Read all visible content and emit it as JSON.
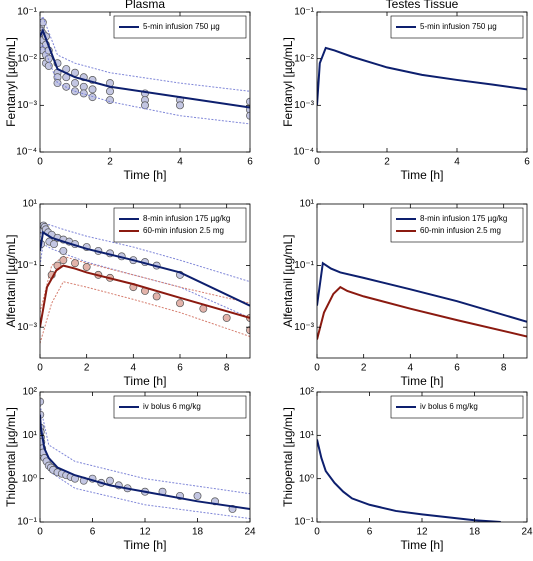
{
  "chart_data": [
    {
      "type": "line",
      "title": "Plasma",
      "xlabel": "Time [h]",
      "ylabel": "Fentanyl [µg/mL]",
      "yscale": "log",
      "legend": "upper right",
      "xlim": [
        0,
        6
      ],
      "xticks": [
        0,
        2,
        4,
        6
      ],
      "ylim": [
        0.0001,
        0.1
      ],
      "yticks": [
        {
          "value": 0.0001,
          "label": "10⁻⁴"
        },
        {
          "value": 0.001,
          "label": "10⁻³"
        },
        {
          "value": 0.01,
          "label": "10⁻²"
        },
        {
          "value": 0.1,
          "label": "10⁻¹"
        }
      ],
      "series": [
        {
          "kind": "scatter",
          "color": "#555555",
          "fill": "#c3c6e2",
          "x": [
            0.03,
            0.03,
            0.03,
            0.03,
            0.08,
            0.08,
            0.08,
            0.08,
            0.17,
            0.17,
            0.17,
            0.17,
            0.25,
            0.25,
            0.25,
            0.5,
            0.5,
            0.5,
            0.5,
            0.75,
            0.75,
            0.75,
            1,
            1,
            1,
            1.25,
            1.25,
            1.25,
            1.5,
            1.5,
            1.5,
            2,
            2,
            2,
            3,
            3,
            3,
            4,
            4,
            6,
            6,
            6
          ],
          "values": [
            0.05,
            0.04,
            0.03,
            0.02,
            0.06,
            0.035,
            0.025,
            0.015,
            0.03,
            0.02,
            0.012,
            0.008,
            0.015,
            0.01,
            0.007,
            0.008,
            0.005,
            0.004,
            0.003,
            0.006,
            0.004,
            0.0025,
            0.005,
            0.003,
            0.002,
            0.004,
            0.0025,
            0.0018,
            0.0035,
            0.0022,
            0.0015,
            0.003,
            0.002,
            0.0013,
            0.0018,
            0.0013,
            0.001,
            0.0013,
            0.001,
            0.0012,
            0.0008,
            0.0006
          ]
        },
        {
          "kind": "dotted",
          "color": "#7f86d8",
          "x": [
            0,
            0.08,
            0.5,
            1,
            2,
            4,
            6
          ],
          "values": [
            0.06,
            0.08,
            0.012,
            0.008,
            0.005,
            0.003,
            0.002
          ]
        },
        {
          "kind": "dotted",
          "color": "#7f86d8",
          "x": [
            0,
            0.08,
            0.5,
            1,
            2,
            4,
            6
          ],
          "values": [
            0.015,
            0.02,
            0.003,
            0.002,
            0.0012,
            0.0006,
            0.0004
          ]
        },
        {
          "kind": "line",
          "name": "5-min infusion 750 µg",
          "color": "#0d1f6e",
          "x": [
            0,
            0.08,
            0.5,
            1,
            2,
            4,
            6
          ],
          "values": [
            0.03,
            0.04,
            0.006,
            0.004,
            0.0025,
            0.0015,
            0.0009
          ]
        }
      ]
    },
    {
      "type": "line",
      "title": "Testes Tissue",
      "xlabel": "Time [h]",
      "ylabel": "Fentanyl [µg/mL]",
      "yscale": "log",
      "legend": "upper right",
      "xlim": [
        0,
        6
      ],
      "xticks": [
        0,
        2,
        4,
        6
      ],
      "ylim": [
        0.0001,
        0.1
      ],
      "yticks": [
        {
          "value": 0.0001,
          "label": "10⁻⁴"
        },
        {
          "value": 0.001,
          "label": "10⁻³"
        },
        {
          "value": 0.01,
          "label": "10⁻²"
        },
        {
          "value": 0.1,
          "label": "10⁻¹"
        }
      ],
      "series": [
        {
          "kind": "line",
          "name": "5-min infusion 750 µg",
          "color": "#0d1f6e",
          "x": [
            0,
            0.08,
            0.25,
            0.5,
            1,
            2,
            3,
            4,
            5,
            6
          ],
          "values": [
            0.001,
            0.008,
            0.017,
            0.015,
            0.011,
            0.0065,
            0.0045,
            0.0035,
            0.0028,
            0.0022
          ]
        }
      ]
    },
    {
      "type": "line",
      "xlabel": "Time [h]",
      "ylabel": "Alfentanil [µg/mL]",
      "yscale": "log",
      "legend": "upper right",
      "xlim": [
        0,
        9
      ],
      "xticks": [
        0,
        2,
        4,
        6,
        8
      ],
      "ylim": [
        0.0001,
        10
      ],
      "yticks": [
        {
          "value": 0.001,
          "label": "10⁻³"
        },
        {
          "value": 0.1,
          "label": "10⁻¹"
        },
        {
          "value": 10,
          "label": "10¹"
        }
      ],
      "series": [
        {
          "kind": "dotted",
          "color": "#7f86d8",
          "x": [
            0,
            0.13,
            0.5,
            1,
            2,
            4,
            6,
            9
          ],
          "values": [
            0.8,
            2.5,
            2,
            1.5,
            0.9,
            0.4,
            0.15,
            0.03
          ]
        },
        {
          "kind": "dotted",
          "color": "#7f86d8",
          "x": [
            0,
            0.13,
            0.5,
            1,
            2,
            4,
            6,
            9
          ],
          "values": [
            0.1,
            0.5,
            0.35,
            0.25,
            0.13,
            0.05,
            0.02,
            0.002
          ]
        },
        {
          "kind": "dotted",
          "color": "#d67f70",
          "x": [
            0,
            0.5,
            1,
            2,
            4,
            6,
            9
          ],
          "values": [
            0.003,
            0.1,
            0.2,
            0.12,
            0.05,
            0.02,
            0.006
          ]
        },
        {
          "kind": "dotted",
          "color": "#d67f70",
          "x": [
            0,
            0.5,
            1,
            2,
            4,
            6,
            9
          ],
          "values": [
            0.0003,
            0.006,
            0.03,
            0.02,
            0.008,
            0.003,
            0.0005
          ]
        },
        {
          "kind": "scatter",
          "color": "#555555",
          "fill": "#c3c6e2",
          "x": [
            0.05,
            0.1,
            0.15,
            0.2,
            0.25,
            0.35,
            0.5,
            0.75,
            1,
            1.25,
            1.5,
            2,
            2.5,
            3,
            3.5,
            4,
            4.5,
            5,
            6,
            0.4,
            0.6,
            1
          ],
          "values": [
            0.5,
            1.5,
            2,
            1.8,
            1.5,
            1.2,
            1,
            0.8,
            0.7,
            0.6,
            0.5,
            0.4,
            0.3,
            0.25,
            0.2,
            0.15,
            0.13,
            0.1,
            0.05,
            0.6,
            0.5,
            0.3
          ]
        },
        {
          "kind": "scatter",
          "color": "#555555",
          "fill": "#e2b3aa",
          "x": [
            0.5,
            0.75,
            1,
            1.5,
            2,
            2.5,
            3,
            4,
            4.5,
            5,
            6,
            7,
            8,
            9,
            9
          ],
          "values": [
            0.05,
            0.1,
            0.15,
            0.12,
            0.09,
            0.05,
            0.04,
            0.02,
            0.015,
            0.01,
            0.006,
            0.004,
            0.002,
            0.002,
            0.0008
          ]
        },
        {
          "kind": "line",
          "name": "8-min infusion 175 µg/kg",
          "color": "#0d1f6e",
          "x": [
            0,
            0.13,
            0.5,
            1,
            2,
            4,
            6,
            9
          ],
          "values": [
            0.3,
            1.2,
            0.8,
            0.6,
            0.35,
            0.15,
            0.06,
            0.005
          ]
        },
        {
          "kind": "line",
          "name": "60-min infusion 2.5 mg",
          "color": "#8b1a10",
          "x": [
            0,
            0.3,
            0.7,
            1,
            1.5,
            2,
            4,
            6,
            9
          ],
          "values": [
            0.001,
            0.02,
            0.07,
            0.1,
            0.08,
            0.06,
            0.025,
            0.009,
            0.002
          ]
        }
      ]
    },
    {
      "type": "line",
      "xlabel": "Time [h]",
      "ylabel": "Alfentanil [µg/mL]",
      "yscale": "log",
      "legend": "upper right",
      "xlim": [
        0,
        9
      ],
      "xticks": [
        0,
        2,
        4,
        6,
        8
      ],
      "ylim": [
        0.0001,
        10
      ],
      "yticks": [
        {
          "value": 0.001,
          "label": "10⁻³"
        },
        {
          "value": 0.1,
          "label": "10⁻¹"
        },
        {
          "value": 10,
          "label": "10¹"
        }
      ],
      "series": [
        {
          "kind": "line",
          "name": "8-min infusion 175 µg/kg",
          "color": "#0d1f6e",
          "x": [
            0,
            0.25,
            0.6,
            1,
            2,
            4,
            6,
            9
          ],
          "values": [
            0.005,
            0.12,
            0.08,
            0.06,
            0.04,
            0.017,
            0.007,
            0.0015
          ]
        },
        {
          "kind": "line",
          "name": "60-min infusion 2.5 mg",
          "color": "#8b1a10",
          "x": [
            0,
            0.3,
            0.7,
            1,
            1.3,
            2,
            4,
            6,
            9
          ],
          "values": [
            0.0004,
            0.003,
            0.012,
            0.02,
            0.015,
            0.01,
            0.004,
            0.0017,
            0.0005
          ]
        }
      ]
    },
    {
      "type": "line",
      "xlabel": "Time [h]",
      "ylabel": "Thiopental [µg/mL]",
      "yscale": "log",
      "legend": "upper right",
      "xlim": [
        0,
        24
      ],
      "xticks": [
        0,
        6,
        12,
        18,
        24
      ],
      "ylim": [
        0.1,
        100
      ],
      "yticks": [
        {
          "value": 0.1,
          "label": "10⁻¹"
        },
        {
          "value": 1,
          "label": "10⁰"
        },
        {
          "value": 10,
          "label": "10¹"
        },
        {
          "value": 100,
          "label": "10²"
        }
      ],
      "series": [
        {
          "kind": "dotted",
          "color": "#7f86d8",
          "x": [
            0,
            1,
            4,
            12,
            24
          ],
          "values": [
            50,
            6,
            2.5,
            1,
            0.45
          ]
        },
        {
          "kind": "dotted",
          "color": "#7f86d8",
          "x": [
            0,
            1,
            4,
            12,
            24
          ],
          "values": [
            15,
            1.5,
            0.6,
            0.25,
            0.12
          ]
        },
        {
          "kind": "scatter",
          "color": "#555555",
          "fill": "#c3c6e2",
          "x": [
            0.02,
            0.03,
            0.05,
            0.08,
            0.1,
            0.15,
            0.25,
            0.33,
            0.5,
            0.75,
            1,
            1.25,
            1.5,
            2,
            2.5,
            3,
            3.5,
            4,
            5,
            6,
            7,
            8,
            9,
            10,
            12,
            14,
            16,
            18,
            20,
            22
          ],
          "values": [
            60,
            30,
            15,
            12,
            9,
            7,
            5,
            4,
            3,
            2.5,
            2,
            1.8,
            1.6,
            1.4,
            1.3,
            1.2,
            1.1,
            1,
            0.9,
            1,
            0.8,
            0.9,
            0.7,
            0.6,
            0.5,
            0.5,
            0.4,
            0.4,
            0.3,
            0.2
          ]
        },
        {
          "kind": "line",
          "name": "iv bolus 6 mg/kg",
          "color": "#0d1f6e",
          "x": [
            0,
            0.1,
            0.5,
            1,
            2,
            4,
            8,
            12,
            18,
            24
          ],
          "values": [
            30,
            15,
            5,
            3,
            1.8,
            1.2,
            0.7,
            0.5,
            0.3,
            0.2
          ]
        }
      ]
    },
    {
      "type": "line",
      "xlabel": "Time [h]",
      "ylabel": "Thiopental [µg/mL]",
      "yscale": "log",
      "legend": "upper right",
      "xlim": [
        0,
        24
      ],
      "xticks": [
        0,
        6,
        12,
        18,
        24
      ],
      "ylim": [
        0.1,
        100
      ],
      "yticks": [
        {
          "value": 0.1,
          "label": "10⁻¹"
        },
        {
          "value": 1,
          "label": "10⁰"
        },
        {
          "value": 10,
          "label": "10¹"
        },
        {
          "value": 100,
          "label": "10²"
        }
      ],
      "series": [
        {
          "kind": "line",
          "name": "iv bolus 6 mg/kg",
          "color": "#0d1f6e",
          "x": [
            0,
            0.5,
            1,
            2,
            3,
            4,
            6,
            9,
            12,
            18,
            21
          ],
          "values": [
            8,
            3,
            1.5,
            0.8,
            0.5,
            0.35,
            0.25,
            0.18,
            0.15,
            0.11,
            0.1
          ]
        }
      ]
    }
  ]
}
